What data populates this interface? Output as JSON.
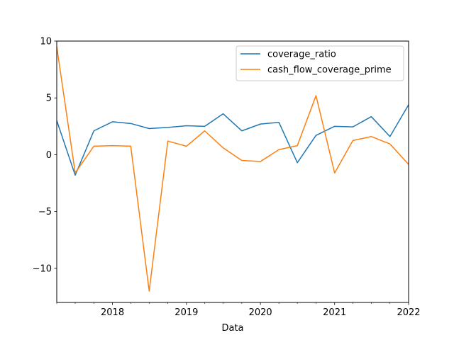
{
  "chart_data": {
    "type": "line",
    "title": "",
    "xlabel": "Data",
    "ylabel": "",
    "xlim": [
      "2017-04-01",
      "2022-01-01"
    ],
    "ylim": [
      -13,
      10
    ],
    "x_major_ticks": [
      "2018-01-01",
      "2019-01-01",
      "2020-01-01",
      "2021-01-01",
      "2022-01-01"
    ],
    "x_tick_labels": [
      "2018",
      "2019",
      "2020",
      "2021",
      "2022"
    ],
    "y_ticks": [
      -10,
      -5,
      0,
      5,
      10
    ],
    "y_tick_labels": [
      "−10",
      "−5",
      "0",
      "5",
      "10"
    ],
    "grid": false,
    "legend_position": "upper right",
    "x": [
      "2017-04-01",
      "2017-07-01",
      "2017-10-01",
      "2018-01-01",
      "2018-04-01",
      "2018-07-01",
      "2018-10-01",
      "2019-01-01",
      "2019-04-01",
      "2019-07-01",
      "2019-10-01",
      "2020-01-01",
      "2020-04-01",
      "2020-07-01",
      "2020-10-01",
      "2021-01-01",
      "2021-04-01",
      "2021-07-01",
      "2021-10-01",
      "2022-01-01"
    ],
    "series": [
      {
        "name": "coverage_ratio",
        "color": "#1f77b4",
        "values": [
          3.0,
          -1.8,
          2.1,
          2.9,
          2.75,
          2.3,
          2.4,
          2.55,
          2.5,
          3.6,
          2.1,
          2.7,
          2.85,
          -0.7,
          1.7,
          2.5,
          2.45,
          3.35,
          1.6,
          4.4
        ]
      },
      {
        "name": "cash_flow_coverage_prime",
        "color": "#ff7f0e",
        "values": [
          9.5,
          -1.6,
          0.75,
          0.8,
          0.75,
          -12.0,
          1.2,
          0.75,
          2.1,
          0.6,
          -0.5,
          -0.6,
          0.45,
          0.8,
          5.2,
          -1.6,
          1.25,
          1.6,
          0.95,
          -0.85
        ]
      }
    ]
  }
}
